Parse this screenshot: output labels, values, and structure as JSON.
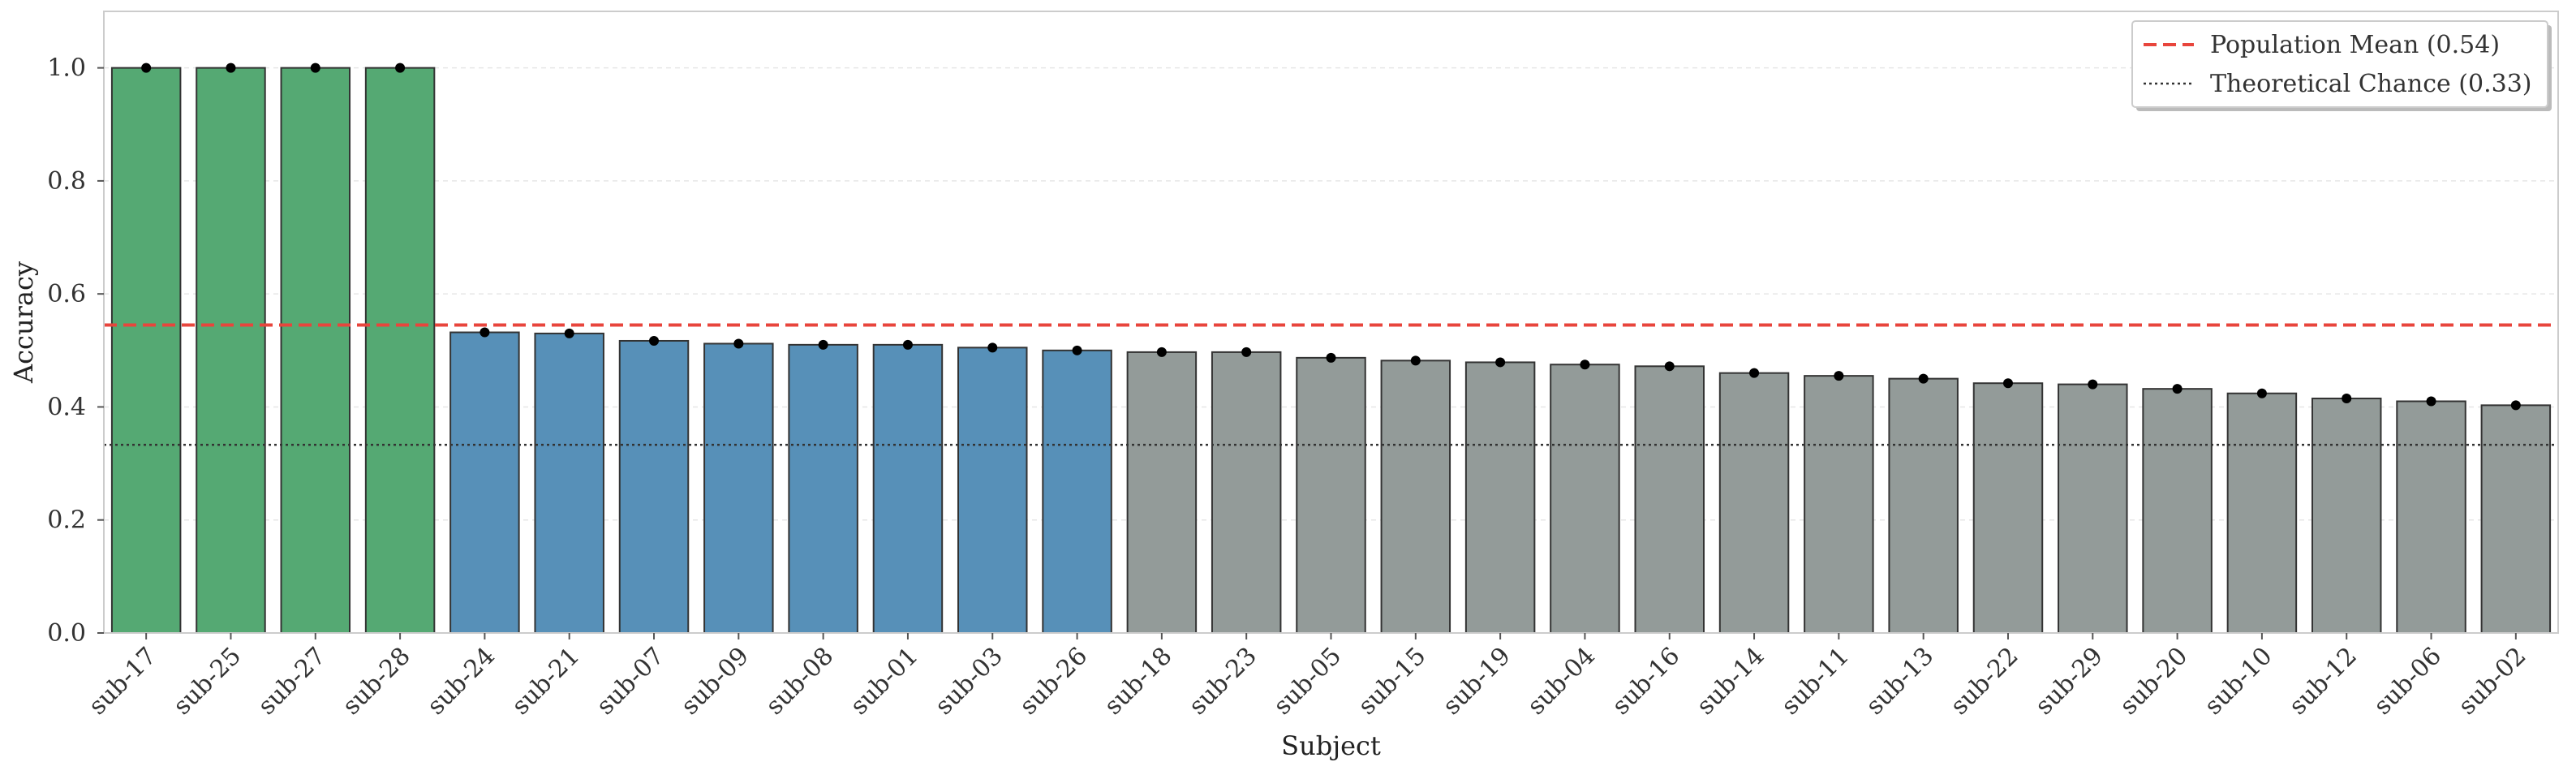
{
  "chart_data": {
    "type": "bar",
    "xlabel": "Subject",
    "ylabel": "Accuracy",
    "ylim": [
      0,
      1.1
    ],
    "yticks": [
      0.0,
      0.2,
      0.4,
      0.6,
      0.8,
      1.0
    ],
    "ytick_labels": [
      "0.0",
      "0.2",
      "0.4",
      "0.6",
      "0.8",
      "1.0"
    ],
    "grid": true,
    "legend_placement": "top-right",
    "categories": [
      "sub-17",
      "sub-25",
      "sub-27",
      "sub-28",
      "sub-24",
      "sub-21",
      "sub-07",
      "sub-09",
      "sub-08",
      "sub-01",
      "sub-03",
      "sub-26",
      "sub-18",
      "sub-23",
      "sub-05",
      "sub-15",
      "sub-19",
      "sub-04",
      "sub-16",
      "sub-14",
      "sub-11",
      "sub-13",
      "sub-22",
      "sub-29",
      "sub-20",
      "sub-10",
      "sub-12",
      "sub-06",
      "sub-02"
    ],
    "values": [
      1.0,
      1.0,
      1.0,
      1.0,
      0.532,
      0.53,
      0.517,
      0.512,
      0.51,
      0.51,
      0.505,
      0.5,
      0.497,
      0.497,
      0.487,
      0.482,
      0.479,
      0.475,
      0.472,
      0.46,
      0.455,
      0.45,
      0.442,
      0.44,
      0.432,
      0.424,
      0.415,
      0.41,
      0.403
    ],
    "bar_groups": [
      "green",
      "green",
      "green",
      "green",
      "blue",
      "blue",
      "blue",
      "blue",
      "blue",
      "blue",
      "blue",
      "blue",
      "gray",
      "gray",
      "gray",
      "gray",
      "gray",
      "gray",
      "gray",
      "gray",
      "gray",
      "gray",
      "gray",
      "gray",
      "gray",
      "gray",
      "gray",
      "gray",
      "gray"
    ],
    "reference_lines": [
      {
        "label": "Population Mean (0.54)",
        "value": 0.545,
        "style": "dashed",
        "color": "#e8453c"
      },
      {
        "label": "Theoretical Chance (0.33)",
        "value": 0.333,
        "style": "dotted",
        "color": "#333333"
      }
    ],
    "colors": {
      "green": "#55a973",
      "blue": "#5790b8",
      "gray": "#939b99",
      "edge": "#333333",
      "point": "#000000"
    }
  }
}
